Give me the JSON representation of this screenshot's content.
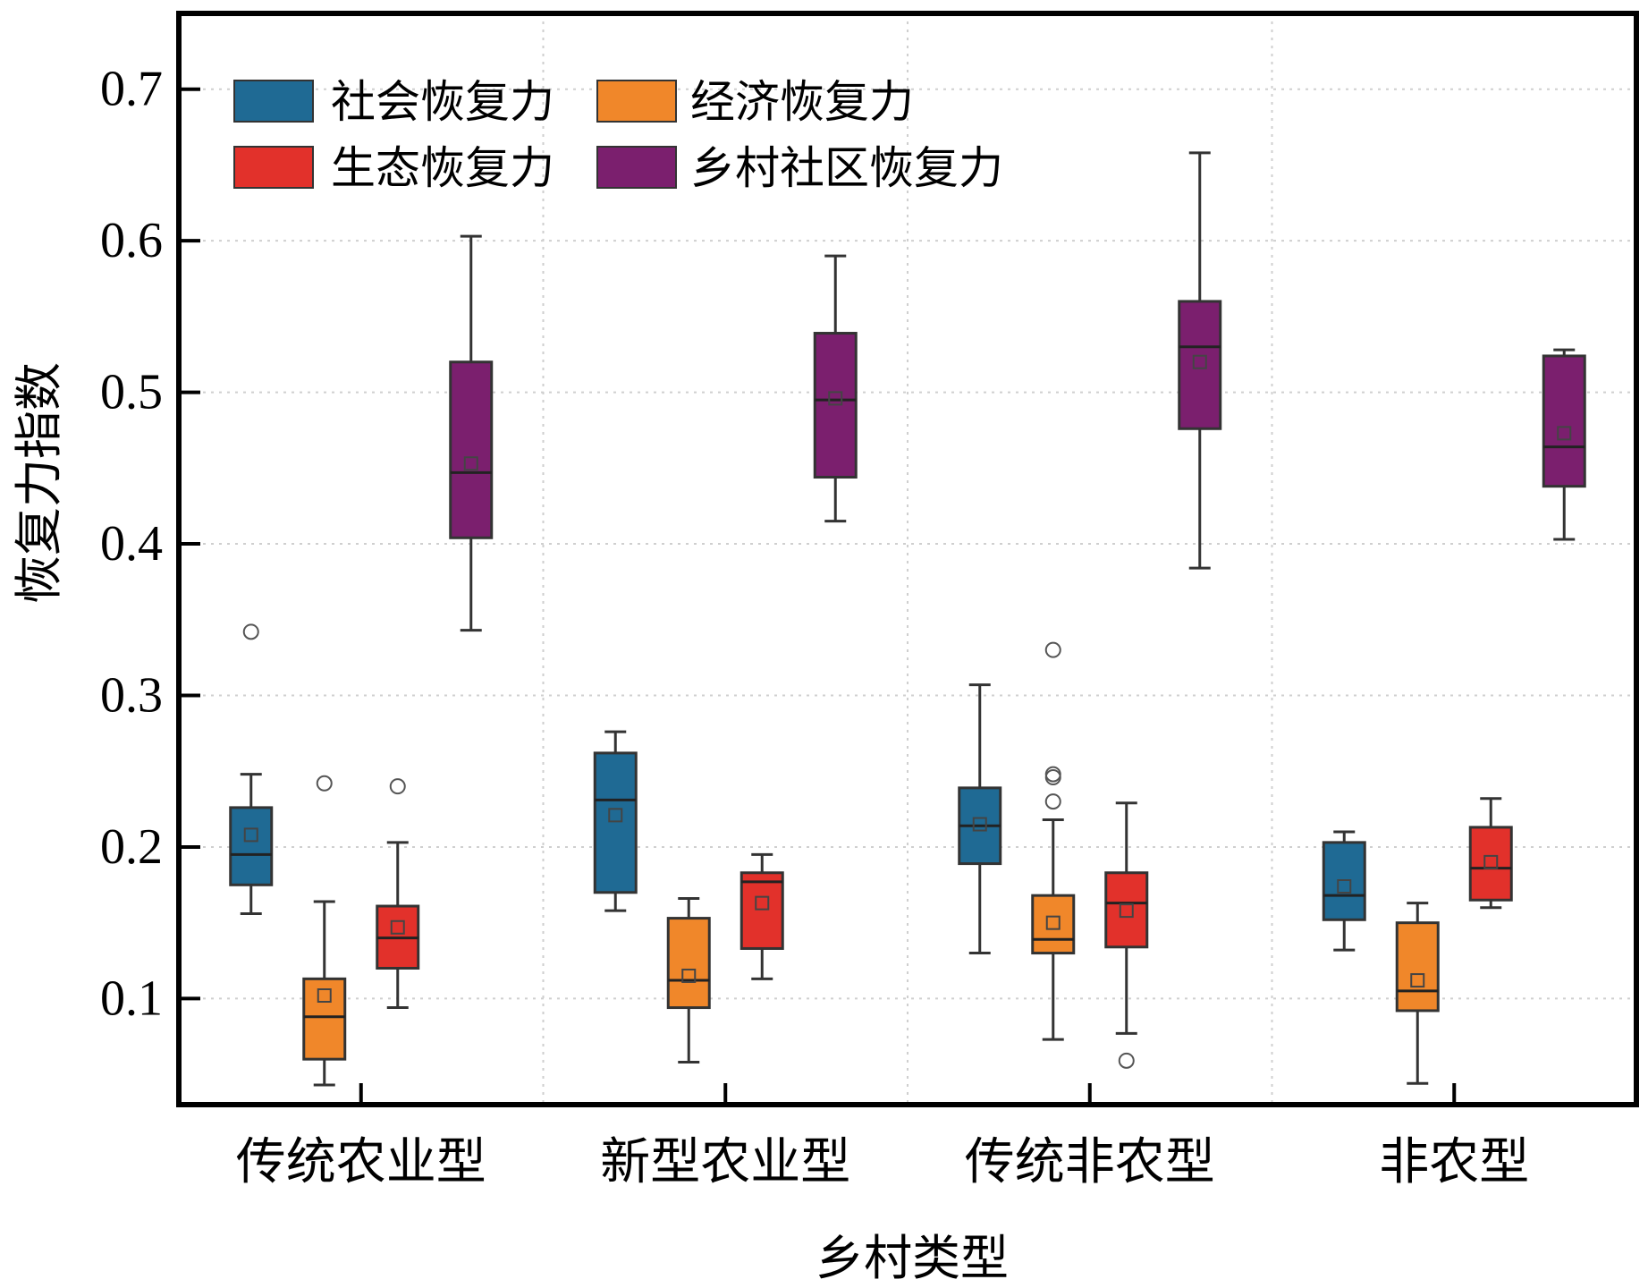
{
  "chart_data": {
    "type": "box",
    "title": "",
    "xlabel": "乡村类型",
    "ylabel": "恢复力指数",
    "ylim": [
      0.03,
      0.75
    ],
    "yticks": [
      0.1,
      0.2,
      0.3,
      0.4,
      0.5,
      0.6,
      0.7
    ],
    "ytick_labels": [
      "0.1",
      "0.2",
      "0.3",
      "0.4",
      "0.5",
      "0.6",
      "0.7"
    ],
    "grid": true,
    "legend_position": "top-left",
    "categories": [
      "传统农业型",
      "新型农业型",
      "传统非农型",
      "非农型"
    ],
    "series": [
      {
        "name": "社会恢复力",
        "color": "#1f6a94",
        "boxes": [
          {
            "min": 0.156,
            "q1": 0.175,
            "median": 0.195,
            "q3": 0.226,
            "max": 0.248,
            "mean": 0.208,
            "outliers": [
              0.342
            ]
          },
          {
            "min": 0.158,
            "q1": 0.17,
            "median": 0.231,
            "q3": 0.262,
            "max": 0.276,
            "mean": 0.221,
            "outliers": []
          },
          {
            "min": 0.13,
            "q1": 0.189,
            "median": 0.214,
            "q3": 0.239,
            "max": 0.307,
            "mean": 0.215,
            "outliers": []
          },
          {
            "min": 0.132,
            "q1": 0.152,
            "median": 0.168,
            "q3": 0.203,
            "max": 0.21,
            "mean": 0.174,
            "outliers": []
          }
        ]
      },
      {
        "name": "经济恢复力",
        "color": "#f0872a",
        "boxes": [
          {
            "min": 0.043,
            "q1": 0.06,
            "median": 0.088,
            "q3": 0.113,
            "max": 0.164,
            "mean": 0.102,
            "outliers": [
              0.242
            ]
          },
          {
            "min": 0.058,
            "q1": 0.094,
            "median": 0.112,
            "q3": 0.153,
            "max": 0.166,
            "mean": 0.115,
            "outliers": []
          },
          {
            "min": 0.073,
            "q1": 0.13,
            "median": 0.139,
            "q3": 0.168,
            "max": 0.218,
            "mean": 0.15,
            "outliers": [
              0.23,
              0.246,
              0.248,
              0.33
            ]
          },
          {
            "min": 0.044,
            "q1": 0.092,
            "median": 0.105,
            "q3": 0.15,
            "max": 0.163,
            "mean": 0.112,
            "outliers": []
          }
        ]
      },
      {
        "name": "生态恢复力",
        "color": "#e2312b",
        "boxes": [
          {
            "min": 0.094,
            "q1": 0.12,
            "median": 0.14,
            "q3": 0.161,
            "max": 0.203,
            "mean": 0.147,
            "outliers": [
              0.24
            ]
          },
          {
            "min": 0.113,
            "q1": 0.133,
            "median": 0.177,
            "q3": 0.183,
            "max": 0.195,
            "mean": 0.163,
            "outliers": []
          },
          {
            "min": 0.077,
            "q1": 0.134,
            "median": 0.163,
            "q3": 0.183,
            "max": 0.229,
            "mean": 0.158,
            "outliers": [
              0.059
            ]
          },
          {
            "min": 0.16,
            "q1": 0.165,
            "median": 0.186,
            "q3": 0.213,
            "max": 0.232,
            "mean": 0.19,
            "outliers": []
          }
        ]
      },
      {
        "name": "乡村社区恢复力",
        "color": "#7b1f6e",
        "boxes": [
          {
            "min": 0.343,
            "q1": 0.404,
            "median": 0.447,
            "q3": 0.52,
            "max": 0.603,
            "mean": 0.453,
            "outliers": []
          },
          {
            "min": 0.415,
            "q1": 0.444,
            "median": 0.495,
            "q3": 0.539,
            "max": 0.59,
            "mean": 0.496,
            "outliers": []
          },
          {
            "min": 0.384,
            "q1": 0.476,
            "median": 0.53,
            "q3": 0.56,
            "max": 0.658,
            "mean": 0.52,
            "outliers": []
          },
          {
            "min": 0.403,
            "q1": 0.438,
            "median": 0.464,
            "q3": 0.524,
            "max": 0.528,
            "mean": 0.473,
            "outliers": []
          }
        ]
      }
    ]
  }
}
